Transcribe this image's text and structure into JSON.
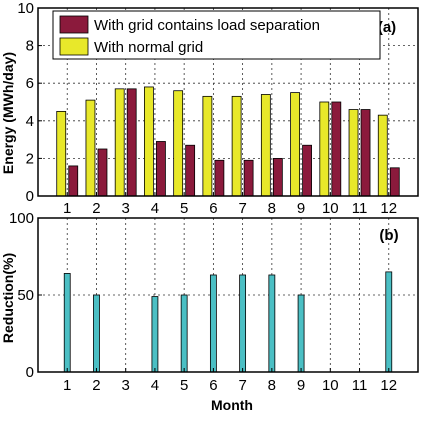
{
  "chart_data": [
    {
      "type": "bar",
      "panel_label": "(a)",
      "categories": [
        "1",
        "2",
        "3",
        "4",
        "5",
        "6",
        "7",
        "8",
        "9",
        "10",
        "11",
        "12"
      ],
      "series": [
        {
          "name": "With normal grid",
          "color": "#e8e82a",
          "values": [
            4.5,
            5.1,
            5.7,
            5.8,
            5.6,
            5.3,
            5.3,
            5.4,
            5.5,
            5.0,
            4.6,
            4.3
          ]
        },
        {
          "name": "With grid contains load separation",
          "color": "#8b1a3c",
          "values": [
            1.6,
            2.5,
            5.7,
            2.9,
            2.7,
            1.9,
            1.9,
            2.0,
            2.7,
            5.0,
            4.6,
            1.5
          ]
        }
      ],
      "ylabel": "Energy (MWh/day)",
      "ylim": [
        0,
        10
      ],
      "yticks": [
        "0",
        "2",
        "4",
        "6",
        "8",
        "10"
      ],
      "grid": true,
      "legend_position": "top"
    },
    {
      "type": "bar",
      "panel_label": "(b)",
      "categories": [
        "1",
        "2",
        "3",
        "4",
        "5",
        "6",
        "7",
        "8",
        "9",
        "10",
        "11",
        "12"
      ],
      "series": [
        {
          "color": "#4bbfc4",
          "values": [
            64,
            50,
            0,
            49,
            50,
            63,
            63,
            63,
            50,
            0,
            0,
            65
          ]
        }
      ],
      "xlabel": "Month",
      "ylabel": "Reduction(%)",
      "ylim": [
        0,
        100
      ],
      "yticks": [
        "0",
        "50",
        "100"
      ],
      "grid": true
    }
  ]
}
